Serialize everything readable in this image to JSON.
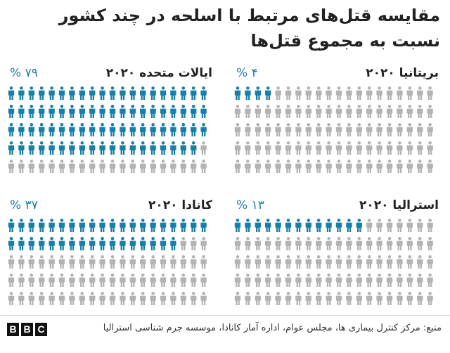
{
  "title": "مقایسه قتل‌های مرتبط با اسلحه در چند کشور نسبت به مجموع قتل‌ها",
  "colors": {
    "highlight": "#1a7fa6",
    "base": "#b3b3b3"
  },
  "chart_data": [
    {
      "type": "pictogram",
      "name": "بریتانیا ۲۰۲۰",
      "value_label": "۴ %",
      "value": 4,
      "total": 100
    },
    {
      "type": "pictogram",
      "name": "ایالات متحده ۲۰۲۰",
      "value_label": "۷۹ %",
      "value": 79,
      "total": 100
    },
    {
      "type": "pictogram",
      "name": "استرالیا ۲۰۲۰",
      "value_label": "۱۳ %",
      "value": 13,
      "total": 100
    },
    {
      "type": "pictogram",
      "name": "کانادا ۲۰۲۰",
      "value_label": "۳۷ %",
      "value": 37,
      "total": 100
    }
  ],
  "footer": {
    "source": "منبع: مرکز کنترل بیماری ها، مجلس عوام، اداره آمار کانادا، موسسه جرم شناسی استرالیا",
    "logo": [
      "B",
      "B",
      "C"
    ]
  }
}
